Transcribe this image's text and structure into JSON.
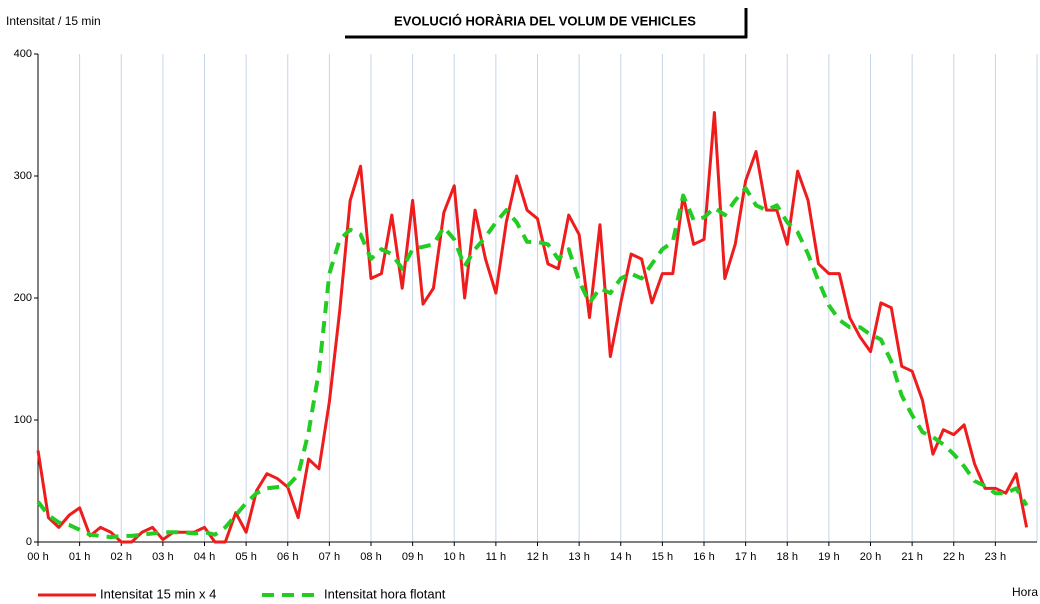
{
  "chart_data": {
    "type": "line",
    "title": "EVOLUCIÓ HORÀRIA DEL VOLUM  DE VEHICLES",
    "y_label": "Intensitat / 15 min",
    "x_label": "Hora",
    "x": [
      0,
      0.25,
      0.5,
      0.75,
      1,
      1.25,
      1.5,
      1.75,
      2,
      2.25,
      2.5,
      2.75,
      3,
      3.25,
      3.5,
      3.75,
      4,
      4.25,
      4.5,
      4.75,
      5,
      5.25,
      5.5,
      5.75,
      6,
      6.25,
      6.5,
      6.75,
      7,
      7.25,
      7.5,
      7.75,
      8,
      8.25,
      8.5,
      8.75,
      9,
      9.25,
      9.5,
      9.75,
      10,
      10.25,
      10.5,
      10.75,
      11,
      11.25,
      11.5,
      11.75,
      12,
      12.25,
      12.5,
      12.75,
      13,
      13.25,
      13.5,
      13.75,
      14,
      14.25,
      14.5,
      14.75,
      15,
      15.25,
      15.5,
      15.75,
      16,
      16.25,
      16.5,
      16.75,
      17,
      17.25,
      17.5,
      17.75,
      18,
      18.25,
      18.5,
      18.75,
      19,
      19.25,
      19.5,
      19.75,
      20,
      20.25,
      20.5,
      20.75,
      21,
      21.25,
      21.5,
      21.75,
      22,
      22.25,
      22.5,
      22.75,
      23,
      23.25,
      23.5,
      23.75
    ],
    "series": [
      {
        "name": "Intensitat 15 min x  4",
        "color": "#ee1c1c",
        "dash": false,
        "values": [
          75,
          20,
          12,
          22,
          28,
          5,
          12,
          8,
          0,
          0,
          8,
          12,
          2,
          8,
          8,
          8,
          12,
          0,
          0,
          24,
          8,
          42,
          56,
          52,
          45,
          20,
          68,
          60,
          115,
          190,
          280,
          308,
          216,
          220,
          268,
          208,
          280,
          195,
          208,
          270,
          292,
          200,
          272,
          232,
          204,
          262,
          300,
          272,
          265,
          228,
          224,
          268,
          252,
          184,
          260,
          152,
          196,
          236,
          232,
          196,
          220,
          220,
          284,
          244,
          248,
          352,
          216,
          244,
          296,
          320,
          272,
          272,
          244,
          304,
          280,
          228,
          220,
          220,
          184,
          168,
          156,
          196,
          192,
          144,
          140,
          116,
          72,
          92,
          88,
          96,
          64,
          44,
          44,
          40,
          56,
          12
        ]
      },
      {
        "name": "Intensitat hora flotant",
        "color": "#22cc22",
        "dash": true,
        "values": [
          33,
          22,
          16,
          14,
          10,
          6,
          5,
          4,
          5,
          5,
          6,
          7,
          8,
          8,
          8,
          7,
          8,
          6,
          12,
          22,
          32,
          40,
          44,
          45,
          46,
          55,
          90,
          140,
          220,
          248,
          256,
          252,
          232,
          240,
          236,
          224,
          240,
          242,
          244,
          258,
          248,
          226,
          240,
          250,
          262,
          272,
          262,
          246,
          246,
          244,
          232,
          240,
          214,
          196,
          208,
          204,
          216,
          220,
          216,
          228,
          240,
          246,
          284,
          264,
          266,
          274,
          268,
          280,
          290,
          276,
          272,
          276,
          262,
          254,
          236,
          214,
          194,
          182,
          176,
          176,
          170,
          166,
          148,
          120,
          104,
          90,
          86,
          80,
          72,
          62,
          50,
          46,
          40,
          40,
          44,
          30
        ]
      }
    ],
    "xlim": [
      0,
      24
    ],
    "xticks": [
      {
        "value": 0,
        "label": "00 h"
      },
      {
        "value": 1,
        "label": "01 h"
      },
      {
        "value": 2,
        "label": "02 h"
      },
      {
        "value": 3,
        "label": "03 h"
      },
      {
        "value": 4,
        "label": "04 h"
      },
      {
        "value": 5,
        "label": "05 h"
      },
      {
        "value": 6,
        "label": "06 h"
      },
      {
        "value": 7,
        "label": "07 h"
      },
      {
        "value": 8,
        "label": "08 h"
      },
      {
        "value": 9,
        "label": "09 h"
      },
      {
        "value": 10,
        "label": "10 h"
      },
      {
        "value": 11,
        "label": "11 h"
      },
      {
        "value": 12,
        "label": "12 h"
      },
      {
        "value": 13,
        "label": "13 h"
      },
      {
        "value": 14,
        "label": "14 h"
      },
      {
        "value": 15,
        "label": "15 h"
      },
      {
        "value": 16,
        "label": "16 h"
      },
      {
        "value": 17,
        "label": "17 h"
      },
      {
        "value": 18,
        "label": "18 h"
      },
      {
        "value": 19,
        "label": "19 h"
      },
      {
        "value": 20,
        "label": "20 h"
      },
      {
        "value": 21,
        "label": "21 h"
      },
      {
        "value": 22,
        "label": "22 h"
      },
      {
        "value": 23,
        "label": "23 h"
      }
    ],
    "ylim": [
      0,
      400
    ],
    "yticks": [
      0,
      100,
      200,
      300,
      400
    ],
    "grid": "x",
    "legend": "bottom"
  }
}
